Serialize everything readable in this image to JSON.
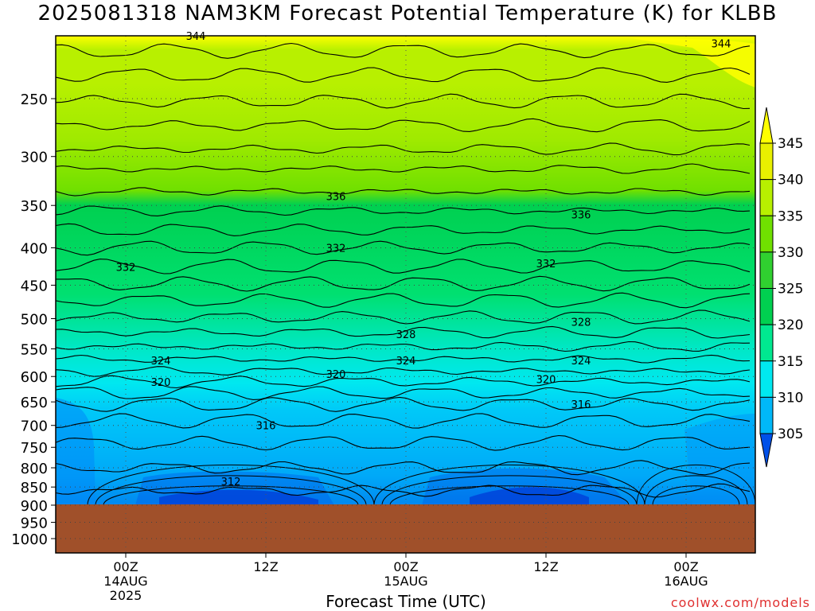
{
  "title": "2025081318 NAM3KM Forecast Potential Temperature (K) for KLBB",
  "credit": "coolwx.com/models",
  "colors": {
    "ground": "#a0502a",
    "levels": [
      "#0050e8",
      "#0088f8",
      "#00b8f8",
      "#00e8f0",
      "#00e890",
      "#00d050",
      "#30d030",
      "#70e000",
      "#b8f000",
      "#e8f000",
      "#ffff00"
    ]
  },
  "chart_data": {
    "type": "contour",
    "title": "2025081318 NAM3KM Forecast Potential Temperature (K) for KLBB",
    "xlabel": "Forecast Time (UTC)",
    "ylabel": "",
    "y_scale": "log-pressure",
    "y_ticks": [
      250,
      300,
      350,
      400,
      450,
      500,
      550,
      600,
      650,
      700,
      750,
      800,
      850,
      900,
      950,
      1000
    ],
    "x_ticks": [
      {
        "label": "00Z",
        "sub1": "14AUG",
        "sub2": "2025"
      },
      {
        "label": "12Z",
        "sub1": "",
        "sub2": ""
      },
      {
        "label": "00Z",
        "sub1": "15AUG",
        "sub2": ""
      },
      {
        "label": "12Z",
        "sub1": "",
        "sub2": ""
      },
      {
        "label": "00Z",
        "sub1": "16AUG",
        "sub2": ""
      }
    ],
    "colorbar_ticks": [
      345,
      340,
      335,
      330,
      325,
      320,
      315,
      310,
      305
    ],
    "grid": true,
    "contour_labels": [
      {
        "value": "344",
        "time": "14AUG 06Z",
        "pressure": 205
      },
      {
        "value": "344",
        "time": "16AUG 03Z",
        "pressure": 210
      },
      {
        "value": "336",
        "time": "14AUG 18Z",
        "pressure": 340
      },
      {
        "value": "336",
        "time": "15AUG 15Z",
        "pressure": 360
      },
      {
        "value": "332",
        "time": "14AUG 00Z",
        "pressure": 425
      },
      {
        "value": "332",
        "time": "14AUG 18Z",
        "pressure": 400
      },
      {
        "value": "332",
        "time": "15AUG 12Z",
        "pressure": 420
      },
      {
        "value": "328",
        "time": "15AUG 00Z",
        "pressure": 525
      },
      {
        "value": "328",
        "time": "15AUG 15Z",
        "pressure": 505
      },
      {
        "value": "324",
        "time": "14AUG 03Z",
        "pressure": 570
      },
      {
        "value": "324",
        "time": "15AUG 00Z",
        "pressure": 570
      },
      {
        "value": "324",
        "time": "15AUG 15Z",
        "pressure": 570
      },
      {
        "value": "320",
        "time": "14AUG 03Z",
        "pressure": 610
      },
      {
        "value": "320",
        "time": "14AUG 18Z",
        "pressure": 595
      },
      {
        "value": "320",
        "time": "15AUG 12Z",
        "pressure": 605
      },
      {
        "value": "316",
        "time": "14AUG 12Z",
        "pressure": 700
      },
      {
        "value": "316",
        "time": "15AUG 15Z",
        "pressure": 655
      },
      {
        "value": "312",
        "time": "14AUG 09Z",
        "pressure": 835
      }
    ]
  }
}
